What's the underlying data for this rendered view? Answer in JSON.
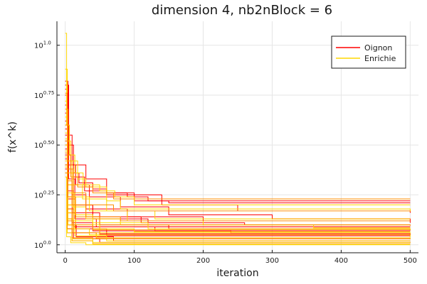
{
  "chart_data": {
    "type": "line",
    "title": "dimension 4, nb2nBlock = 6",
    "xlabel": "iteration",
    "ylabel": "f(x^k)",
    "xlim": [
      -12,
      512
    ],
    "ylim": [
      -0.04,
      1.12
    ],
    "y_scale": "log10 (tick labels show 10^exponent)",
    "grid": true,
    "legend_position": "top-right",
    "x_ticks": [
      {
        "value": 0,
        "label": "0"
      },
      {
        "value": 100,
        "label": "100"
      },
      {
        "value": 200,
        "label": "200"
      },
      {
        "value": 300,
        "label": "300"
      },
      {
        "value": 400,
        "label": "400"
      },
      {
        "value": 500,
        "label": "500"
      }
    ],
    "y_ticks": [
      {
        "value": 0.0,
        "base": "10",
        "exponent": "0.0"
      },
      {
        "value": 0.25,
        "base": "10",
        "exponent": "0.25"
      },
      {
        "value": 0.5,
        "base": "10",
        "exponent": "0.50"
      },
      {
        "value": 0.75,
        "base": "10",
        "exponent": "0.75"
      },
      {
        "value": 1.0,
        "base": "10",
        "exponent": "1.0"
      }
    ],
    "series": [
      {
        "name": "Oignon",
        "color": "#ff0000",
        "runs": [
          [
            [
              0,
              0.82
            ],
            [
              4,
              0.55
            ],
            [
              10,
              0.4
            ],
            [
              30,
              0.33
            ],
            [
              60,
              0.26
            ],
            [
              100,
              0.22
            ],
            [
              500,
              0.22
            ]
          ],
          [
            [
              0,
              0.78
            ],
            [
              3,
              0.45
            ],
            [
              8,
              0.36
            ],
            [
              20,
              0.31
            ],
            [
              40,
              0.28
            ],
            [
              60,
              0.26
            ],
            [
              90,
              0.24
            ],
            [
              120,
              0.22
            ],
            [
              150,
              0.21
            ],
            [
              500,
              0.21
            ]
          ],
          [
            [
              0,
              0.8
            ],
            [
              5,
              0.5
            ],
            [
              12,
              0.34
            ],
            [
              28,
              0.27
            ],
            [
              60,
              0.25
            ],
            [
              140,
              0.2
            ],
            [
              250,
              0.17
            ],
            [
              500,
              0.16
            ]
          ],
          [
            [
              0,
              0.7
            ],
            [
              4,
              0.4
            ],
            [
              15,
              0.3
            ],
            [
              35,
              0.24
            ],
            [
              80,
              0.19
            ],
            [
              150,
              0.15
            ],
            [
              300,
              0.13
            ],
            [
              500,
              0.12
            ]
          ],
          [
            [
              0,
              0.75
            ],
            [
              3,
              0.38
            ],
            [
              10,
              0.25
            ],
            [
              30,
              0.18
            ],
            [
              90,
              0.14
            ],
            [
              200,
              0.12
            ],
            [
              500,
              0.11
            ]
          ],
          [
            [
              0,
              0.62
            ],
            [
              3,
              0.3
            ],
            [
              10,
              0.2
            ],
            [
              40,
              0.14
            ],
            [
              110,
              0.11
            ],
            [
              260,
              0.1
            ],
            [
              500,
              0.1
            ]
          ],
          [
            [
              0,
              0.66
            ],
            [
              5,
              0.33
            ],
            [
              14,
              0.2
            ],
            [
              40,
              0.13
            ],
            [
              120,
              0.09
            ],
            [
              500,
              0.09
            ]
          ],
          [
            [
              0,
              0.58
            ],
            [
              3,
              0.27
            ],
            [
              12,
              0.16
            ],
            [
              50,
              0.1
            ],
            [
              150,
              0.08
            ],
            [
              500,
              0.08
            ]
          ],
          [
            [
              0,
              0.55
            ],
            [
              4,
              0.23
            ],
            [
              14,
              0.13
            ],
            [
              45,
              0.09
            ],
            [
              130,
              0.07
            ],
            [
              500,
              0.07
            ]
          ],
          [
            [
              0,
              0.5
            ],
            [
              3,
              0.2
            ],
            [
              10,
              0.11
            ],
            [
              40,
              0.07
            ],
            [
              240,
              0.06
            ],
            [
              500,
              0.06
            ]
          ],
          [
            [
              0,
              0.48
            ],
            [
              3,
              0.18
            ],
            [
              12,
              0.09
            ],
            [
              50,
              0.055
            ],
            [
              500,
              0.05
            ]
          ],
          [
            [
              0,
              0.52
            ],
            [
              4,
              0.16
            ],
            [
              15,
              0.08
            ],
            [
              60,
              0.045
            ],
            [
              500,
              0.04
            ]
          ],
          [
            [
              0,
              0.45
            ],
            [
              3,
              0.13
            ],
            [
              10,
              0.06
            ],
            [
              45,
              0.03
            ],
            [
              500,
              0.03
            ]
          ],
          [
            [
              0,
              0.43
            ],
            [
              4,
              0.1
            ],
            [
              16,
              0.04
            ],
            [
              70,
              0.02
            ],
            [
              500,
              0.02
            ]
          ],
          [
            [
              0,
              0.4
            ],
            [
              3,
              0.08
            ],
            [
              12,
              0.03
            ],
            [
              50,
              0.012
            ],
            [
              500,
              0.01
            ]
          ],
          [
            [
              0,
              0.38
            ],
            [
              3,
              0.06
            ],
            [
              10,
              0.02
            ],
            [
              40,
              0.005
            ],
            [
              500,
              0.005
            ]
          ]
        ]
      },
      {
        "name": "Enrichie",
        "color": "#ffd700",
        "runs": [
          [
            [
              0,
              1.06
            ],
            [
              2,
              0.6
            ],
            [
              6,
              0.45
            ],
            [
              14,
              0.36
            ],
            [
              26,
              0.3
            ],
            [
              50,
              0.27
            ],
            [
              72,
              0.24
            ],
            [
              100,
              0.2
            ],
            [
              500,
              0.2
            ]
          ],
          [
            [
              0,
              0.88
            ],
            [
              3,
              0.52
            ],
            [
              8,
              0.42
            ],
            [
              18,
              0.33
            ],
            [
              30,
              0.29
            ],
            [
              60,
              0.22
            ],
            [
              80,
              0.18
            ],
            [
              500,
              0.17
            ]
          ],
          [
            [
              0,
              0.72
            ],
            [
              3,
              0.42
            ],
            [
              10,
              0.3
            ],
            [
              25,
              0.23
            ],
            [
              60,
              0.17
            ],
            [
              130,
              0.13
            ],
            [
              500,
              0.13
            ]
          ],
          [
            [
              0,
              0.64
            ],
            [
              4,
              0.36
            ],
            [
              12,
              0.24
            ],
            [
              35,
              0.17
            ],
            [
              90,
              0.12
            ],
            [
              200,
              0.1
            ],
            [
              500,
              0.1
            ]
          ],
          [
            [
              0,
              0.6
            ],
            [
              3,
              0.3
            ],
            [
              10,
              0.19
            ],
            [
              30,
              0.13
            ],
            [
              80,
              0.1
            ],
            [
              360,
              0.085
            ],
            [
              500,
              0.085
            ]
          ],
          [
            [
              0,
              0.56
            ],
            [
              4,
              0.26
            ],
            [
              14,
              0.15
            ],
            [
              40,
              0.11
            ],
            [
              120,
              0.08
            ],
            [
              500,
              0.075
            ]
          ],
          [
            [
              0,
              0.53
            ],
            [
              3,
              0.24
            ],
            [
              12,
              0.12
            ],
            [
              40,
              0.08
            ],
            [
              100,
              0.065
            ],
            [
              500,
              0.065
            ]
          ],
          [
            [
              0,
              0.5
            ],
            [
              4,
              0.2
            ],
            [
              15,
              0.1
            ],
            [
              50,
              0.06
            ],
            [
              500,
              0.055
            ]
          ],
          [
            [
              0,
              0.47
            ],
            [
              3,
              0.16
            ],
            [
              10,
              0.08
            ],
            [
              35,
              0.05
            ],
            [
              500,
              0.04
            ]
          ],
          [
            [
              0,
              0.44
            ],
            [
              3,
              0.13
            ],
            [
              12,
              0.06
            ],
            [
              45,
              0.035
            ],
            [
              500,
              0.03
            ]
          ],
          [
            [
              0,
              0.42
            ],
            [
              4,
              0.1
            ],
            [
              14,
              0.045
            ],
            [
              60,
              0.02
            ],
            [
              500,
              0.02
            ]
          ],
          [
            [
              0,
              0.39
            ],
            [
              3,
              0.08
            ],
            [
              10,
              0.03
            ],
            [
              40,
              0.012
            ],
            [
              500,
              0.01
            ]
          ],
          [
            [
              0,
              0.36
            ],
            [
              3,
              0.06
            ],
            [
              10,
              0.02
            ],
            [
              40,
              0.004
            ],
            [
              500,
              0.004
            ]
          ],
          [
            [
              0,
              0.34
            ],
            [
              2,
              0.04
            ],
            [
              8,
              0.01
            ],
            [
              30,
              0.0
            ],
            [
              500,
              0.0
            ]
          ]
        ]
      },
      {
        "name": "",
        "color": "#ff8c00",
        "runs": [
          [
            [
              0,
              0.76
            ],
            [
              3,
              0.45
            ],
            [
              8,
              0.34
            ],
            [
              18,
              0.29
            ],
            [
              40,
              0.26
            ],
            [
              70,
              0.23
            ],
            [
              500,
              0.23
            ]
          ],
          [
            [
              0,
              0.68
            ],
            [
              4,
              0.38
            ],
            [
              12,
              0.26
            ],
            [
              30,
              0.2
            ],
            [
              70,
              0.17
            ],
            [
              500,
              0.166
            ]
          ],
          [
            [
              0,
              0.6
            ],
            [
              3,
              0.32
            ],
            [
              10,
              0.2
            ],
            [
              30,
              0.14
            ],
            [
              80,
              0.12
            ],
            [
              500,
              0.12
            ]
          ],
          [
            [
              0,
              0.52
            ],
            [
              4,
              0.24
            ],
            [
              15,
              0.14
            ],
            [
              50,
              0.1
            ],
            [
              500,
              0.095
            ]
          ],
          [
            [
              0,
              0.46
            ],
            [
              3,
              0.18
            ],
            [
              10,
              0.1
            ],
            [
              40,
              0.075
            ],
            [
              500,
              0.072
            ]
          ],
          [
            [
              0,
              0.4
            ],
            [
              3,
              0.12
            ],
            [
              12,
              0.06
            ],
            [
              50,
              0.05
            ],
            [
              500,
              0.05
            ]
          ],
          [
            [
              0,
              0.36
            ],
            [
              3,
              0.08
            ],
            [
              10,
              0.035
            ],
            [
              40,
              0.03
            ],
            [
              500,
              0.028
            ]
          ]
        ]
      }
    ]
  }
}
